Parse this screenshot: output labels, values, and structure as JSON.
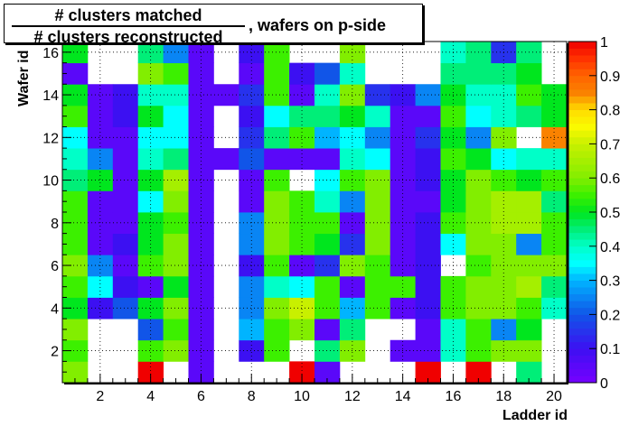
{
  "title": {
    "numerator": "# clusters matched",
    "denominator": "# clusters reconstructed",
    "suffix": ", wafers on p-side"
  },
  "chart_data": {
    "type": "heatmap",
    "xlabel": "Ladder id",
    "ylabel": "Wafer id",
    "x_ticks": [
      2,
      4,
      6,
      8,
      10,
      12,
      14,
      16,
      18,
      20
    ],
    "y_ticks": [
      2,
      4,
      6,
      8,
      10,
      12,
      14,
      16
    ],
    "x_range": [
      0.5,
      20.5
    ],
    "y_range": [
      0.5,
      16.5
    ],
    "x_cells": [
      1,
      2,
      3,
      4,
      5,
      6,
      7,
      8,
      9,
      10,
      11,
      12,
      13,
      14,
      15,
      16,
      17,
      18,
      19,
      20
    ],
    "y_cells": [
      1,
      2,
      3,
      4,
      5,
      6,
      7,
      8,
      9,
      10,
      11,
      12,
      13,
      14,
      15,
      16
    ],
    "z": [
      [
        0.6,
        null,
        null,
        1.0,
        null,
        0.05,
        null,
        null,
        null,
        1.0,
        0.05,
        null,
        null,
        null,
        1.0,
        null,
        1.0,
        null,
        0.45,
        null
      ],
      [
        0.55,
        null,
        null,
        0.55,
        0.6,
        0.05,
        null,
        0.1,
        0.55,
        null,
        0.45,
        0.6,
        null,
        0.05,
        0.05,
        0.4,
        0.55,
        0.6,
        0.6,
        null
      ],
      [
        0.6,
        null,
        null,
        0.2,
        0.55,
        0.05,
        null,
        0.3,
        0.55,
        0.6,
        0.05,
        0.45,
        null,
        null,
        0.05,
        0.4,
        0.55,
        0.25,
        0.5,
        null
      ],
      [
        0.5,
        0.1,
        0.2,
        0.5,
        0.6,
        0.05,
        null,
        0.25,
        0.6,
        0.7,
        0.55,
        0.3,
        0.55,
        0.05,
        0.1,
        0.55,
        0.6,
        0.6,
        0.55,
        0.4
      ],
      [
        0.55,
        0.35,
        0.1,
        0.05,
        0.5,
        0.05,
        null,
        0.25,
        0.4,
        0.35,
        0.55,
        0.05,
        0.55,
        0.55,
        0.1,
        0.55,
        0.6,
        0.6,
        0.65,
        0.45
      ],
      [
        0.6,
        0.25,
        0.05,
        0.55,
        0.6,
        0.05,
        null,
        0.1,
        0.55,
        0.05,
        0.15,
        0.6,
        0.55,
        0.05,
        0.1,
        null,
        0.55,
        0.6,
        0.6,
        0.6
      ],
      [
        0.55,
        0.05,
        0.1,
        0.5,
        0.6,
        0.05,
        null,
        0.25,
        0.6,
        0.55,
        0.5,
        0.15,
        0.6,
        0.05,
        0.1,
        0.35,
        0.6,
        0.6,
        0.25,
        0.55
      ],
      [
        0.55,
        0.05,
        0.05,
        0.5,
        0.55,
        0.05,
        null,
        0.25,
        0.6,
        0.55,
        0.55,
        0.05,
        0.6,
        0.05,
        0.1,
        0.55,
        0.6,
        0.65,
        0.65,
        0.55
      ],
      [
        0.55,
        0.05,
        0.05,
        0.35,
        0.6,
        0.05,
        null,
        0.05,
        0.6,
        0.55,
        0.4,
        0.25,
        0.6,
        0.05,
        0.05,
        0.5,
        0.6,
        0.65,
        0.65,
        0.45
      ],
      [
        0.45,
        0.5,
        0.05,
        0.5,
        0.65,
        0.05,
        null,
        0.05,
        0.55,
        null,
        0.35,
        0.55,
        0.6,
        0.05,
        0.1,
        0.5,
        0.6,
        0.55,
        0.5,
        0.55
      ],
      [
        0.4,
        0.25,
        0.05,
        0.4,
        0.45,
        0.05,
        0.05,
        0.2,
        0.05,
        0.05,
        0.05,
        0.4,
        0.35,
        0.05,
        0.1,
        0.55,
        0.5,
        0.35,
        0.4,
        0.4
      ],
      [
        0.35,
        0.05,
        0.05,
        0.35,
        0.35,
        0.05,
        null,
        0.15,
        0.45,
        0.55,
        0.3,
        0.35,
        0.25,
        0.05,
        0.15,
        0.5,
        0.25,
        0.6,
        null,
        0.85
      ],
      [
        0.55,
        0.05,
        0.1,
        0.5,
        0.35,
        0.05,
        null,
        0.1,
        0.35,
        0.45,
        0.45,
        0.5,
        0.4,
        0.05,
        0.05,
        0.55,
        0.35,
        0.4,
        0.45,
        0.5
      ],
      [
        0.5,
        0.05,
        0.1,
        0.4,
        0.4,
        0.05,
        0.05,
        0.15,
        0.55,
        0.05,
        0.4,
        0.6,
        0.15,
        0.1,
        0.25,
        0.5,
        0.4,
        0.4,
        0.55,
        0.5
      ],
      [
        0.05,
        null,
        null,
        0.6,
        0.55,
        0.05,
        null,
        0.05,
        0.55,
        0.1,
        0.2,
        0.4,
        null,
        null,
        null,
        0.45,
        0.45,
        0.45,
        0.5,
        null
      ],
      [
        0.5,
        null,
        null,
        0.45,
        0.25,
        0.05,
        null,
        0.1,
        0.55,
        null,
        null,
        0.6,
        null,
        null,
        null,
        0.4,
        0.45,
        0.15,
        0.45,
        null
      ]
    ],
    "z_range": [
      0,
      1
    ],
    "colorbar_ticks": [
      "0",
      "0.1",
      "0.2",
      "0.3",
      "0.4",
      "0.5",
      "0.6",
      "0.7",
      "0.8",
      "0.9",
      "1"
    ],
    "grid": true
  }
}
